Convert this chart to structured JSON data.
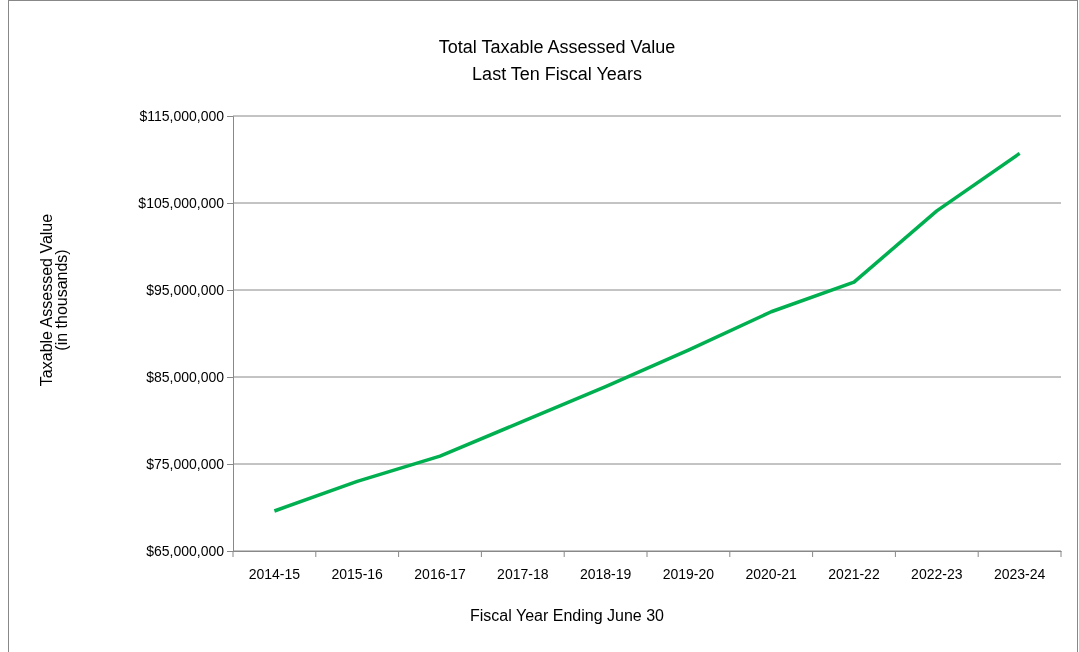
{
  "chart_data": {
    "type": "line",
    "title": "Total Taxable Assessed Value\nLast Ten Fiscal Years",
    "xlabel": "Fiscal Year Ending June 30",
    "ylabel": "Taxable Assessed Value\n(in thousands)",
    "categories": [
      "2014-15",
      "2015-16",
      "2016-17",
      "2017-18",
      "2018-19",
      "2019-20",
      "2020-21",
      "2021-22",
      "2022-23",
      "2023-24"
    ],
    "series": [
      {
        "color": "#00b050",
        "values": [
          69600000,
          73000000,
          75900000,
          79900000,
          83900000,
          88100000,
          92500000,
          95900000,
          104100000,
          110700000
        ]
      }
    ],
    "ylim": [
      65000000,
      115000000
    ],
    "yticks": [
      {
        "value": 65000000,
        "label": "$65,000,000"
      },
      {
        "value": 75000000,
        "label": "$75,000,000"
      },
      {
        "value": 85000000,
        "label": "$85,000,000"
      },
      {
        "value": 95000000,
        "label": "$95,000,000"
      },
      {
        "value": 105000000,
        "label": "$105,000,000"
      },
      {
        "value": 115000000,
        "label": "$115,000,000"
      }
    ],
    "grid": "y",
    "legend": false,
    "marker": "none",
    "line_style": "solid"
  }
}
